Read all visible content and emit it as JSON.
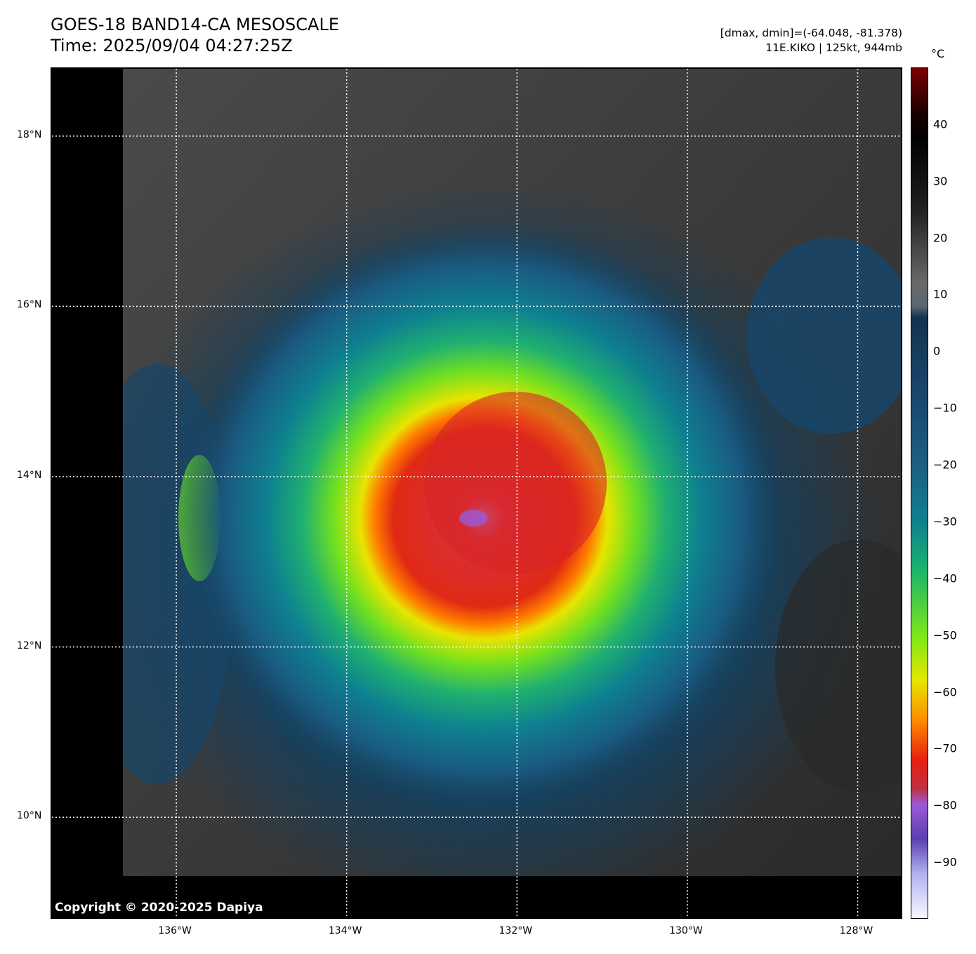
{
  "header": {
    "title_line1": "GOES-18 BAND14-CA MESOSCALE",
    "title_line2": "Time: 2025/09/04 04:27:25Z",
    "dmax_dmin": "[dmax, dmin]=(-64.048, -81.378)",
    "storm_info": "11E.KIKO | 125kt, 944mb"
  },
  "map": {
    "lon_range": [
      -137.46,
      -127.46
    ],
    "lat_range": [
      8.79,
      18.79
    ],
    "lon_ticks": [
      {
        "value": -136,
        "label": "136°W"
      },
      {
        "value": -134,
        "label": "134°W"
      },
      {
        "value": -132,
        "label": "132°W"
      },
      {
        "value": -130,
        "label": "130°W"
      },
      {
        "value": -128,
        "label": "128°W"
      }
    ],
    "lat_ticks": [
      {
        "value": 18,
        "label": "18°N"
      },
      {
        "value": 16,
        "label": "16°N"
      },
      {
        "value": 14,
        "label": "14°N"
      },
      {
        "value": 12,
        "label": "12°N"
      },
      {
        "value": 10,
        "label": "10°N"
      }
    ],
    "storm_center": {
      "lon": -132.3,
      "lat": 13.8
    },
    "copyright": "Copyright © 2020-2025 Dapiya"
  },
  "colorbar": {
    "unit": "°C",
    "range": [
      -100,
      50
    ],
    "ticks": [
      "40",
      "30",
      "20",
      "10",
      "0",
      "−10",
      "−20",
      "−30",
      "−40",
      "−50",
      "−60",
      "−70",
      "−80",
      "−90"
    ],
    "tick_values": [
      40,
      30,
      20,
      10,
      0,
      -10,
      -20,
      -30,
      -40,
      -50,
      -60,
      -70,
      -80,
      -90
    ],
    "stops": [
      {
        "v": 50,
        "c": "#7a0000"
      },
      {
        "v": 42,
        "c": "#1a0000"
      },
      {
        "v": 38,
        "c": "#000000"
      },
      {
        "v": 25,
        "c": "#202020"
      },
      {
        "v": 12,
        "c": "#6a6a6a"
      },
      {
        "v": 8,
        "c": "#5a6670"
      },
      {
        "v": 6,
        "c": "#123450"
      },
      {
        "v": -10,
        "c": "#1b4a70"
      },
      {
        "v": -20,
        "c": "#1d5f80"
      },
      {
        "v": -30,
        "c": "#0e8090"
      },
      {
        "v": -38,
        "c": "#18b070"
      },
      {
        "v": -50,
        "c": "#7ae81a"
      },
      {
        "v": -58,
        "c": "#e6e600"
      },
      {
        "v": -65,
        "c": "#ff8c00"
      },
      {
        "v": -72,
        "c": "#e82010"
      },
      {
        "v": -77,
        "c": "#c03040"
      },
      {
        "v": -80,
        "c": "#9a5ad8"
      },
      {
        "v": -86,
        "c": "#5a40b0"
      },
      {
        "v": -92,
        "c": "#b0b0f0"
      },
      {
        "v": -100,
        "c": "#f8f8ff"
      }
    ]
  }
}
